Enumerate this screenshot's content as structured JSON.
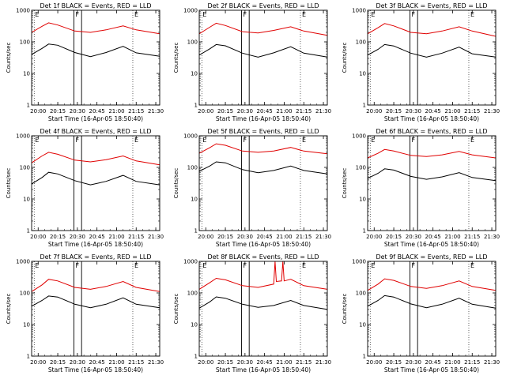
{
  "chart_data": [
    {
      "type": "line",
      "title": "Det 1f BLACK = Events, RED = LLD",
      "xlabel": "Start Time (16-Apr-05 18:50:40)",
      "ylabel": "Counts/sec",
      "yscale": "log",
      "ylim": [
        1,
        1000
      ],
      "ytick_labels": [
        "1",
        "10",
        "100",
        "1000"
      ],
      "xtick_labels": [
        "20:00",
        "20:15",
        "20:30",
        "20:45",
        "21:00",
        "21:15",
        "21:30"
      ],
      "xlim": [
        "19:55",
        "21:33"
      ],
      "markers": [
        "E",
        "F",
        "E"
      ],
      "series": [
        {
          "name": "Events",
          "color": "#000000",
          "times": [
            "19:55",
            "20:03",
            "20:08",
            "20:15",
            "20:28",
            "20:40",
            "20:52",
            "21:05",
            "21:15",
            "21:33"
          ],
          "values": [
            40,
            62,
            85,
            78,
            46,
            34,
            46,
            72,
            45,
            35
          ]
        },
        {
          "name": "LLD",
          "color": "#e00000",
          "times": [
            "19:55",
            "20:03",
            "20:08",
            "20:15",
            "20:28",
            "20:40",
            "20:52",
            "21:05",
            "21:15",
            "21:33"
          ],
          "values": [
            200,
            310,
            400,
            340,
            220,
            200,
            240,
            320,
            240,
            180
          ]
        }
      ]
    },
    {
      "type": "line",
      "title": "Det 2f BLACK = Events, RED = LLD",
      "xlabel": "Start Time (16-Apr-05 18:50:40)",
      "ylabel": "Counts/sec",
      "yscale": "log",
      "ylim": [
        1,
        1000
      ],
      "ytick_labels": [
        "1",
        "10",
        "100",
        "1000"
      ],
      "xtick_labels": [
        "20:00",
        "20:15",
        "20:30",
        "20:45",
        "21:00",
        "21:15",
        "21:30"
      ],
      "xlim": [
        "19:55",
        "21:33"
      ],
      "markers": [
        "E",
        "F",
        "E"
      ],
      "series": [
        {
          "name": "Events",
          "color": "#000000",
          "times": [
            "19:55",
            "20:03",
            "20:08",
            "20:15",
            "20:28",
            "20:40",
            "20:52",
            "21:05",
            "21:15",
            "21:33"
          ],
          "values": [
            38,
            60,
            82,
            75,
            44,
            33,
            45,
            70,
            44,
            33
          ]
        },
        {
          "name": "LLD",
          "color": "#e00000",
          "times": [
            "19:55",
            "20:03",
            "20:08",
            "20:15",
            "20:28",
            "20:40",
            "20:52",
            "21:05",
            "21:15",
            "21:33"
          ],
          "values": [
            180,
            290,
            390,
            330,
            210,
            190,
            230,
            300,
            220,
            160
          ]
        }
      ]
    },
    {
      "type": "line",
      "title": "Det 3f BLACK = Events, RED = LLD",
      "xlabel": "Start Time (16-Apr-05 18:50:40)",
      "ylabel": "Counts/sec",
      "yscale": "log",
      "ylim": [
        1,
        1000
      ],
      "ytick_labels": [
        "1",
        "10",
        "100",
        "1000"
      ],
      "xtick_labels": [
        "20:00",
        "20:15",
        "20:30",
        "20:45",
        "21:00",
        "21:15",
        "21:30"
      ],
      "xlim": [
        "19:55",
        "21:33"
      ],
      "markers": [
        "E",
        "F",
        "E"
      ],
      "series": [
        {
          "name": "Events",
          "color": "#000000",
          "times": [
            "19:55",
            "20:03",
            "20:08",
            "20:15",
            "20:28",
            "20:40",
            "20:52",
            "21:05",
            "21:15",
            "21:33"
          ],
          "values": [
            38,
            58,
            82,
            74,
            44,
            33,
            44,
            68,
            42,
            33
          ]
        },
        {
          "name": "LLD",
          "color": "#e00000",
          "times": [
            "19:55",
            "20:03",
            "20:08",
            "20:15",
            "20:28",
            "20:40",
            "20:52",
            "21:05",
            "21:15",
            "21:33"
          ],
          "values": [
            180,
            280,
            380,
            320,
            200,
            180,
            220,
            300,
            220,
            150
          ]
        }
      ]
    },
    {
      "type": "line",
      "title": "Det 4f BLACK = Events, RED = LLD",
      "xlabel": "Start Time (16-Apr-05 18:50:40)",
      "ylabel": "Counts/sec",
      "yscale": "log",
      "ylim": [
        1,
        1000
      ],
      "ytick_labels": [
        "1",
        "10",
        "100",
        "1000"
      ],
      "xtick_labels": [
        "20:00",
        "20:15",
        "20:30",
        "20:45",
        "21:00",
        "21:15",
        "21:30"
      ],
      "xlim": [
        "19:55",
        "21:33"
      ],
      "markers": [
        "E",
        "F",
        "E"
      ],
      "series": [
        {
          "name": "Events",
          "color": "#000000",
          "times": [
            "19:55",
            "20:03",
            "20:08",
            "20:15",
            "20:28",
            "20:40",
            "20:52",
            "21:05",
            "21:15",
            "21:33"
          ],
          "values": [
            30,
            48,
            70,
            62,
            38,
            28,
            36,
            56,
            36,
            28
          ]
        },
        {
          "name": "LLD",
          "color": "#e00000",
          "times": [
            "19:55",
            "20:03",
            "20:08",
            "20:15",
            "20:28",
            "20:40",
            "20:52",
            "21:05",
            "21:15",
            "21:33"
          ],
          "values": [
            140,
            230,
            300,
            260,
            170,
            150,
            175,
            230,
            160,
            120
          ]
        }
      ]
    },
    {
      "type": "line",
      "title": "Det 5f BLACK = Events, RED = LLD",
      "xlabel": "Start Time (16-Apr-05 18:50:40)",
      "ylabel": "Counts/sec",
      "yscale": "log",
      "ylim": [
        1,
        1000
      ],
      "ytick_labels": [
        "1",
        "10",
        "100",
        "1000"
      ],
      "xtick_labels": [
        "20:00",
        "20:15",
        "20:30",
        "20:45",
        "21:00",
        "21:15",
        "21:30"
      ],
      "xlim": [
        "19:55",
        "21:33"
      ],
      "markers": [
        "E",
        "F",
        "E"
      ],
      "series": [
        {
          "name": "Events",
          "color": "#000000",
          "times": [
            "19:55",
            "20:03",
            "20:08",
            "20:15",
            "20:28",
            "20:40",
            "20:52",
            "21:05",
            "21:15",
            "21:33"
          ],
          "values": [
            75,
            110,
            150,
            140,
            85,
            68,
            80,
            110,
            80,
            62
          ]
        },
        {
          "name": "LLD",
          "color": "#e00000",
          "times": [
            "19:55",
            "20:03",
            "20:08",
            "20:15",
            "20:28",
            "20:40",
            "20:52",
            "21:05",
            "21:15",
            "21:33"
          ],
          "values": [
            280,
            420,
            560,
            500,
            330,
            300,
            330,
            430,
            330,
            270
          ]
        }
      ]
    },
    {
      "type": "line",
      "title": "Det 6f BLACK = Events, RED = LLD",
      "xlabel": "Start Time (16-Apr-05 18:50:40)",
      "ylabel": "Counts/sec",
      "yscale": "log",
      "ylim": [
        1,
        1000
      ],
      "ytick_labels": [
        "1",
        "10",
        "100",
        "1000"
      ],
      "xtick_labels": [
        "20:00",
        "20:15",
        "20:30",
        "20:45",
        "21:00",
        "21:15",
        "21:30"
      ],
      "xlim": [
        "19:55",
        "21:33"
      ],
      "markers": [
        "E",
        "F",
        "E"
      ],
      "series": [
        {
          "name": "Events",
          "color": "#000000",
          "times": [
            "19:55",
            "20:03",
            "20:08",
            "20:15",
            "20:28",
            "20:40",
            "20:52",
            "21:05",
            "21:15",
            "21:33"
          ],
          "values": [
            45,
            65,
            90,
            82,
            52,
            42,
            50,
            68,
            48,
            38
          ]
        },
        {
          "name": "LLD",
          "color": "#e00000",
          "times": [
            "19:55",
            "20:03",
            "20:08",
            "20:15",
            "20:28",
            "20:40",
            "20:52",
            "21:05",
            "21:15",
            "21:33"
          ],
          "values": [
            200,
            280,
            370,
            330,
            240,
            220,
            250,
            320,
            250,
            200
          ]
        }
      ]
    },
    {
      "type": "line",
      "title": "Det 7f BLACK = Events, RED = LLD",
      "xlabel": "Start Time (16-Apr-05 18:50:40)",
      "ylabel": "Counts/sec",
      "yscale": "log",
      "ylim": [
        1,
        1000
      ],
      "ytick_labels": [
        "1",
        "10",
        "100",
        "1000"
      ],
      "xtick_labels": [
        "20:00",
        "20:15",
        "20:30",
        "20:45",
        "21:00",
        "21:15",
        "21:30"
      ],
      "xlim": [
        "19:55",
        "21:33"
      ],
      "markers": [
        "E",
        "F",
        "E"
      ],
      "series": [
        {
          "name": "Events",
          "color": "#000000",
          "times": [
            "19:55",
            "20:03",
            "20:08",
            "20:15",
            "20:28",
            "20:40",
            "20:52",
            "21:05",
            "21:15",
            "21:33"
          ],
          "values": [
            38,
            58,
            80,
            74,
            44,
            34,
            44,
            70,
            44,
            34
          ]
        },
        {
          "name": "LLD",
          "color": "#e00000",
          "times": [
            "19:55",
            "20:03",
            "20:08",
            "20:15",
            "20:28",
            "20:40",
            "20:52",
            "21:05",
            "21:15",
            "21:33"
          ],
          "values": [
            110,
            180,
            270,
            240,
            150,
            130,
            160,
            230,
            150,
            110
          ]
        }
      ]
    },
    {
      "type": "line",
      "title": "Det 8f BLACK = Events, RED = LLD",
      "xlabel": "Start Time (16-Apr-05 18:50:40)",
      "ylabel": "Counts/sec",
      "yscale": "log",
      "ylim": [
        1,
        1000
      ],
      "ytick_labels": [
        "1",
        "10",
        "100",
        "1000"
      ],
      "xtick_labels": [
        "20:00",
        "20:15",
        "20:30",
        "20:45",
        "21:00",
        "21:15",
        "21:30"
      ],
      "xlim": [
        "19:55",
        "21:33"
      ],
      "markers": [
        "E",
        "F",
        "E"
      ],
      "series": [
        {
          "name": "Events",
          "color": "#000000",
          "times": [
            "19:55",
            "20:03",
            "20:08",
            "20:15",
            "20:28",
            "20:40",
            "20:52",
            "21:05",
            "21:15",
            "21:33"
          ],
          "values": [
            33,
            52,
            75,
            68,
            44,
            35,
            40,
            58,
            40,
            30
          ]
        },
        {
          "name": "LLD",
          "color": "#e00000",
          "times": [
            "19:55",
            "20:03",
            "20:08",
            "20:15",
            "20:28",
            "20:40",
            "20:52",
            "20:53",
            "20:54",
            "20:58",
            "20:59",
            "21:00",
            "21:05",
            "21:15",
            "21:33"
          ],
          "values": [
            130,
            210,
            290,
            260,
            170,
            150,
            190,
            1000,
            230,
            240,
            1000,
            240,
            270,
            170,
            130
          ]
        }
      ]
    },
    {
      "type": "line",
      "title": "Det 9f BLACK = Events, RED = LLD",
      "xlabel": "Start Time (16-Apr-05 18:50:40)",
      "ylabel": "Counts/sec",
      "yscale": "log",
      "ylim": [
        1,
        1000
      ],
      "ytick_labels": [
        "1",
        "10",
        "100",
        "1000"
      ],
      "xtick_labels": [
        "20:00",
        "20:15",
        "20:30",
        "20:45",
        "21:00",
        "21:15",
        "21:30"
      ],
      "xlim": [
        "19:55",
        "21:33"
      ],
      "markers": [
        "E",
        "F",
        "E"
      ],
      "series": [
        {
          "name": "Events",
          "color": "#000000",
          "times": [
            "19:55",
            "20:03",
            "20:08",
            "20:15",
            "20:28",
            "20:40",
            "20:52",
            "21:05",
            "21:15",
            "21:33"
          ],
          "values": [
            38,
            58,
            82,
            74,
            45,
            34,
            44,
            68,
            44,
            33
          ]
        },
        {
          "name": "LLD",
          "color": "#e00000",
          "times": [
            "19:55",
            "20:03",
            "20:08",
            "20:15",
            "20:28",
            "20:40",
            "20:52",
            "21:05",
            "21:15",
            "21:33"
          ],
          "values": [
            120,
            190,
            280,
            250,
            160,
            140,
            170,
            240,
            160,
            120
          ]
        }
      ]
    }
  ]
}
